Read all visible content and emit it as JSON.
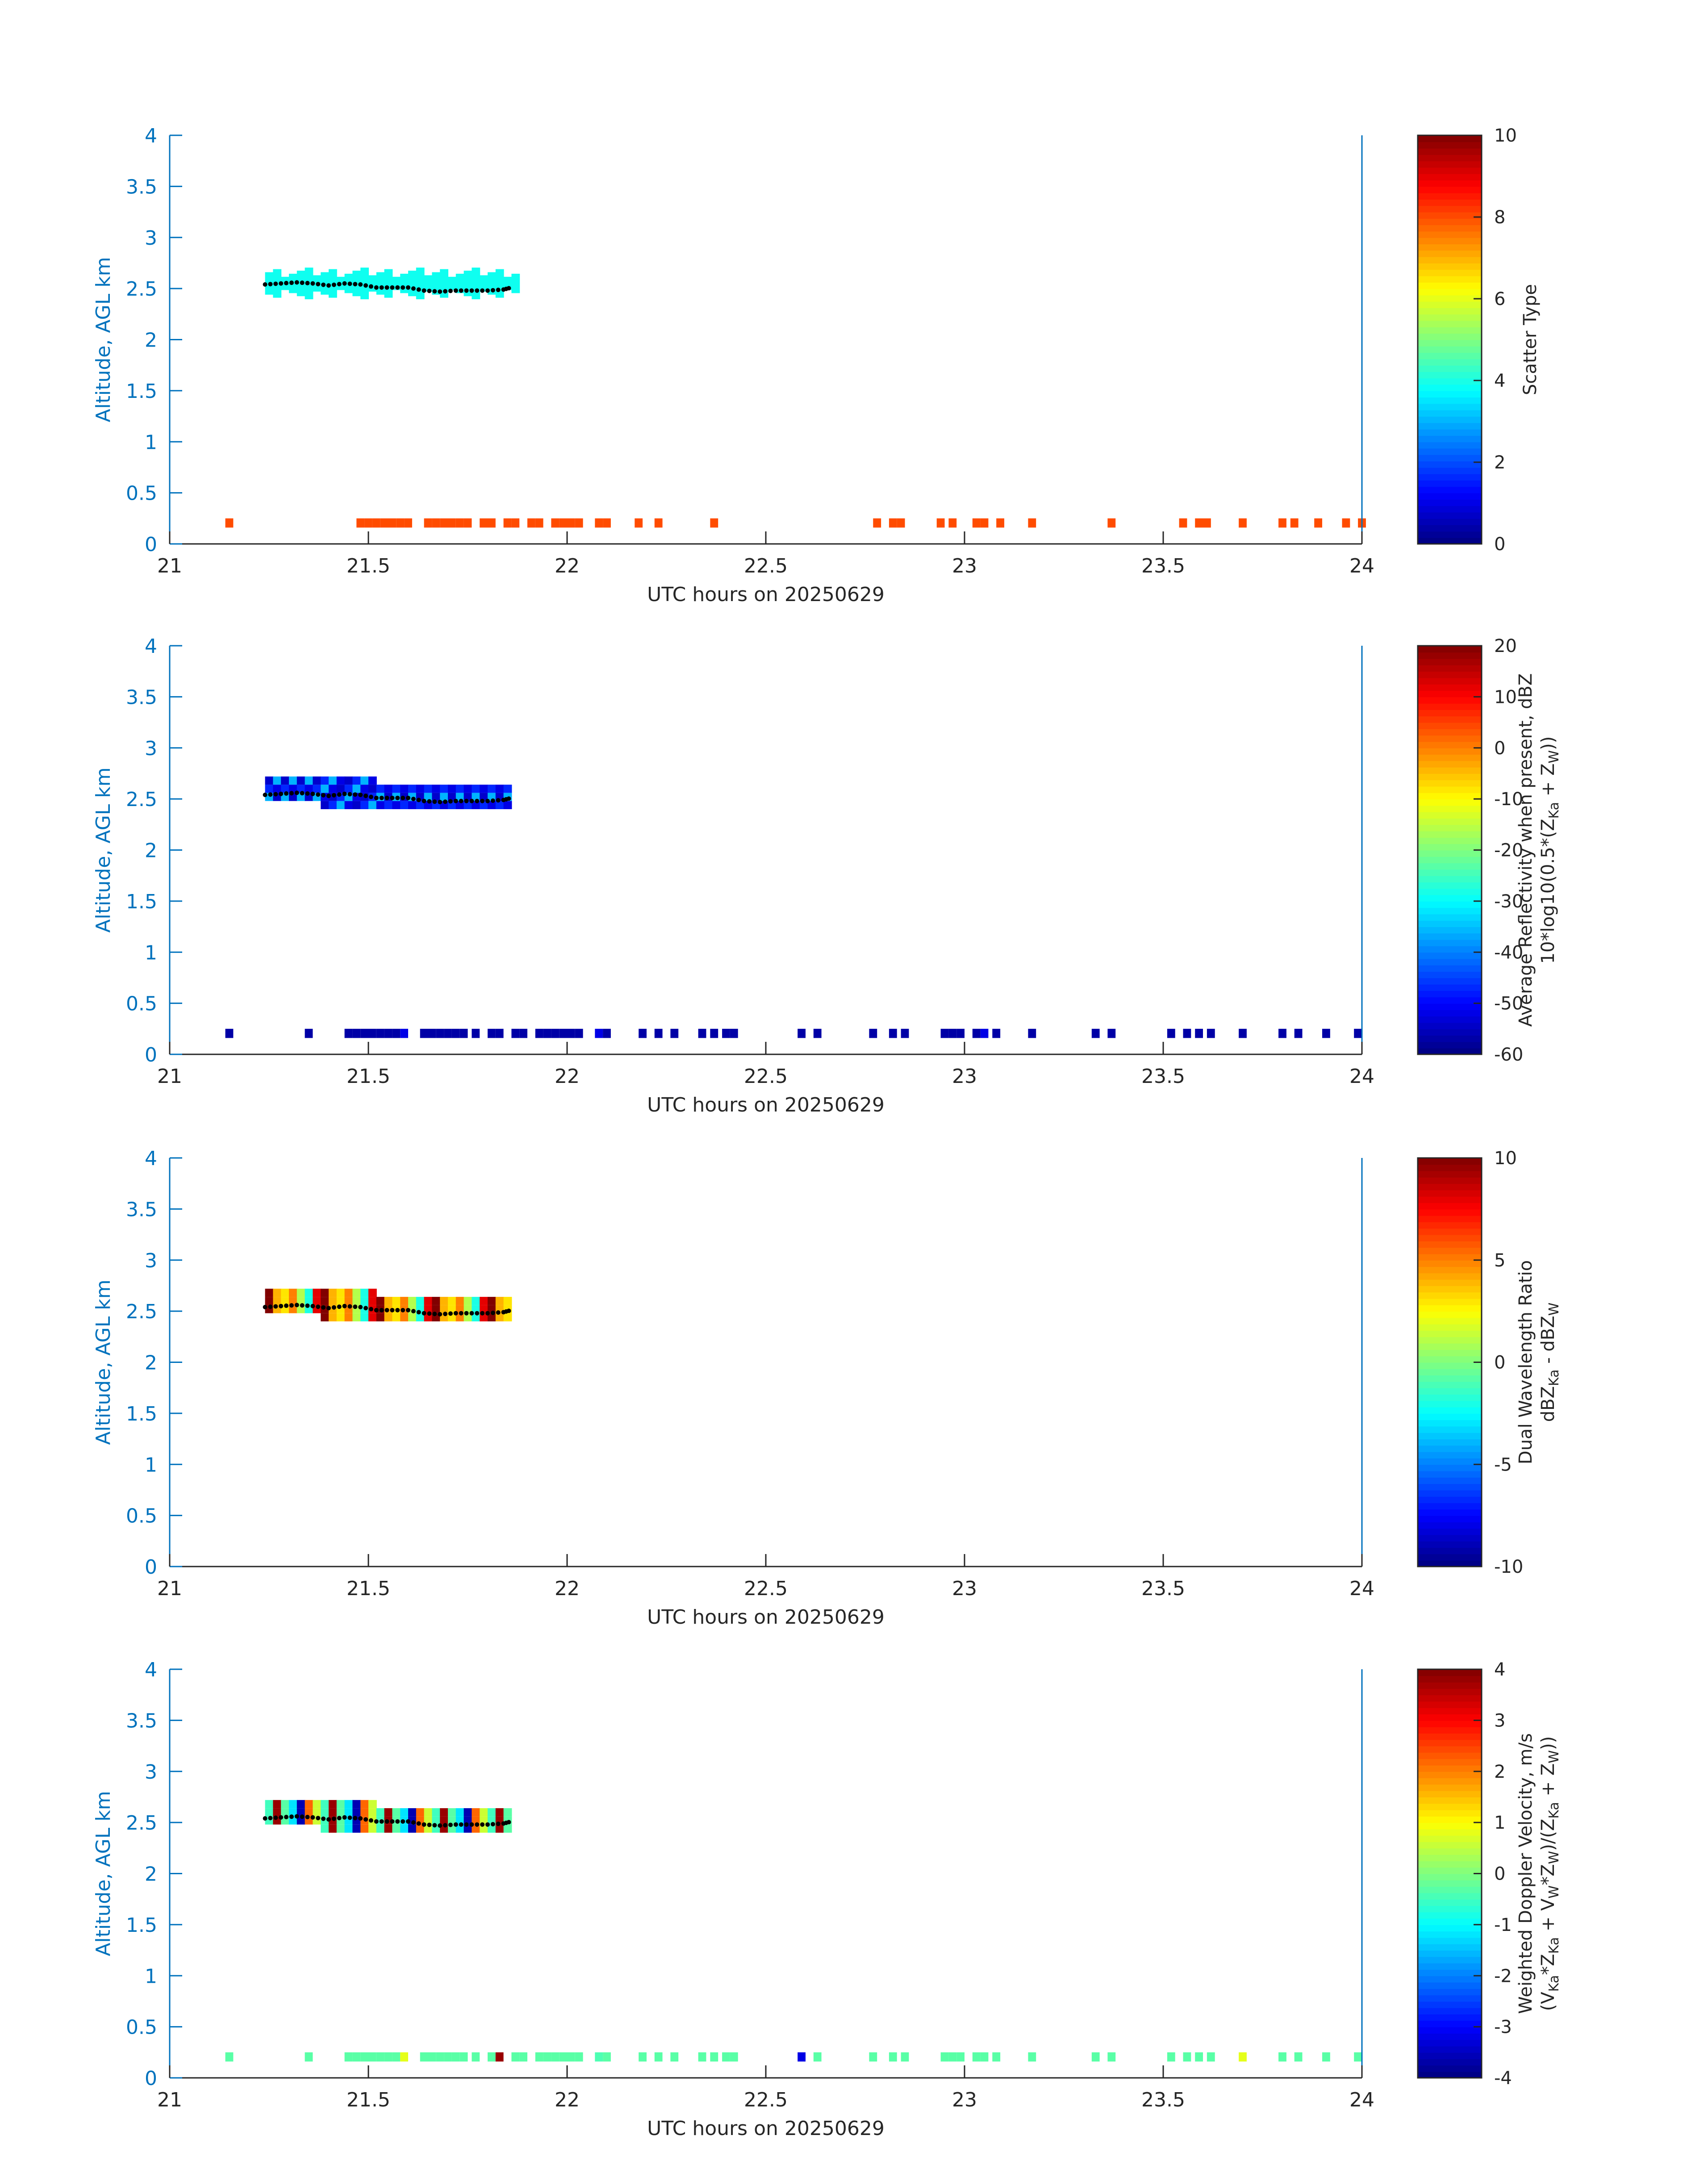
{
  "figure_title": "UTC hours on 20250629",
  "colors": {
    "axis_blue": "#0072BD",
    "axis_dark": "#262626",
    "trend_dots": "#000000"
  },
  "chart_data": [
    {
      "type": "heatmap",
      "id": "scatter-type",
      "xlabel": "UTC hours on 20250629",
      "ylabel": "Altitude, AGL km",
      "xlim": [
        21,
        24
      ],
      "ylim": [
        0,
        4
      ],
      "xticks": [
        "21",
        "21.5",
        "22",
        "22.5",
        "23",
        "23.5",
        "24"
      ],
      "yticks": [
        "0",
        "0.5",
        "1",
        "1.5",
        "2",
        "2.5",
        "3",
        "3.5",
        "4"
      ],
      "colorbar": {
        "labels": [
          "Scatter Type"
        ],
        "range": [
          0,
          10
        ],
        "ticks": [
          "0",
          "2",
          "4",
          "6",
          "8",
          "10"
        ]
      },
      "cells_upper": [
        {
          "t0": 21.24,
          "t1": 21.86,
          "z0": 2.44,
          "z1": 2.66,
          "value": 3.9
        }
      ],
      "cells_lower_value": 8.0,
      "cell_height_km": 0.1
    },
    {
      "type": "heatmap",
      "id": "avg-reflectivity",
      "xlabel": "UTC hours on 20250629",
      "ylabel": "Altitude, AGL km",
      "xlim": [
        21,
        24
      ],
      "ylim": [
        0,
        4
      ],
      "xticks": [
        "21",
        "21.5",
        "22",
        "22.5",
        "23",
        "23.5",
        "24"
      ],
      "yticks": [
        "0",
        "0.5",
        "1",
        "1.5",
        "2",
        "2.5",
        "3",
        "3.5",
        "4"
      ],
      "colorbar": {
        "labels": [
          "Average Reflectivity when present, dBZ",
          "10*log10(0.5*(Z",
          "Ka",
          " + Z",
          "W",
          "))"
        ],
        "range": [
          -60,
          20
        ],
        "ticks": [
          "-60",
          "-50",
          "-40",
          "-30",
          "-20",
          "-10",
          "0",
          "10",
          "20"
        ]
      },
      "cells_upper_values": [
        -54,
        -47,
        -36,
        -52
      ],
      "cells_lower_values": [
        -57,
        -52
      ]
    },
    {
      "type": "heatmap",
      "id": "dual-wavelength-ratio",
      "xlabel": "UTC hours on 20250629",
      "ylabel": "Altitude, AGL km",
      "xlim": [
        21,
        24
      ],
      "ylim": [
        0,
        4
      ],
      "xticks": [
        "21",
        "21.5",
        "22",
        "22.5",
        "23",
        "23.5",
        "24"
      ],
      "yticks": [
        "0",
        "0.5",
        "1",
        "1.5",
        "2",
        "2.5",
        "3",
        "3.5",
        "4"
      ],
      "colorbar": {
        "labels": [
          "Dual Wavelength Ratio",
          "dBZ",
          "Ka",
          " - dBZ",
          "W"
        ],
        "range": [
          -10,
          10
        ],
        "ticks": [
          "-10",
          "-5",
          "0",
          "5",
          "10"
        ]
      },
      "cells_upper_values": [
        3,
        5,
        1,
        -2,
        8,
        10,
        4
      ]
    },
    {
      "type": "heatmap",
      "id": "weighted-doppler-velocity",
      "xlabel": "UTC hours on 20250629",
      "ylabel": "Altitude, AGL km",
      "xlim": [
        21,
        24
      ],
      "ylim": [
        0,
        4
      ],
      "xticks": [
        "21",
        "21.5",
        "22",
        "22.5",
        "23",
        "23.5",
        "24"
      ],
      "yticks": [
        "0",
        "0.5",
        "1",
        "1.5",
        "2",
        "2.5",
        "3",
        "3.5",
        "4"
      ],
      "colorbar": {
        "labels": [
          "Weighted Doppler Velocity, m/s",
          "(V",
          "Ka",
          "*Z",
          "Ka",
          " + V",
          "W",
          "*Z",
          "W",
          ")/(Z",
          "Ka",
          " + Z",
          "W",
          "))"
        ],
        "range": [
          -4,
          4
        ],
        "ticks": [
          "-4",
          "-3",
          "-2",
          "-1",
          "0",
          "1",
          "2",
          "3",
          "4"
        ]
      },
      "cells_upper_values": [
        -0.3,
        -1.2,
        -3.6,
        2.2,
        0.6,
        -0.5,
        3.8
      ],
      "cells_lower_values": [
        -0.3,
        -0.4,
        0.8,
        -3.2,
        3.8
      ]
    }
  ],
  "lower_layer_times": [
    21.14,
    21.34,
    21.44,
    21.46,
    21.48,
    21.5,
    21.52,
    21.54,
    21.56,
    21.58,
    21.63,
    21.65,
    21.67,
    21.69,
    21.71,
    21.73,
    21.76,
    21.8,
    21.82,
    21.86,
    21.88,
    21.92,
    21.94,
    21.96,
    21.98,
    22.0,
    22.02,
    22.07,
    22.09,
    22.18,
    22.22,
    22.26,
    22.33,
    22.36,
    22.39,
    22.41,
    22.58,
    22.62,
    22.76,
    22.81,
    22.84,
    22.94,
    22.96,
    22.98,
    23.02,
    23.04,
    23.07,
    23.16,
    23.32,
    23.36,
    23.51,
    23.55,
    23.58,
    23.61,
    23.69,
    23.79,
    23.83,
    23.9,
    23.98
  ],
  "scatter_lower_times": [
    21.14,
    21.47,
    21.49,
    21.51,
    21.53,
    21.55,
    21.57,
    21.59,
    21.64,
    21.66,
    21.68,
    21.7,
    21.72,
    21.74,
    21.78,
    21.8,
    21.84,
    21.86,
    21.9,
    21.92,
    21.96,
    21.98,
    22.0,
    22.02,
    22.07,
    22.09,
    22.17,
    22.22,
    22.36,
    22.77,
    22.81,
    22.83,
    22.93,
    22.96,
    23.02,
    23.04,
    23.08,
    23.16,
    23.36,
    23.54,
    23.58,
    23.6,
    23.69,
    23.79,
    23.82,
    23.88,
    23.95,
    23.99
  ],
  "trend_line": {
    "t": [
      21.24,
      21.28,
      21.32,
      21.36,
      21.4,
      21.44,
      21.48,
      21.52,
      21.56,
      21.6,
      21.64,
      21.68,
      21.72,
      21.76,
      21.8,
      21.84,
      21.86
    ],
    "z": [
      2.54,
      2.55,
      2.56,
      2.55,
      2.53,
      2.55,
      2.54,
      2.51,
      2.51,
      2.51,
      2.48,
      2.47,
      2.48,
      2.48,
      2.48,
      2.49,
      2.51
    ]
  }
}
